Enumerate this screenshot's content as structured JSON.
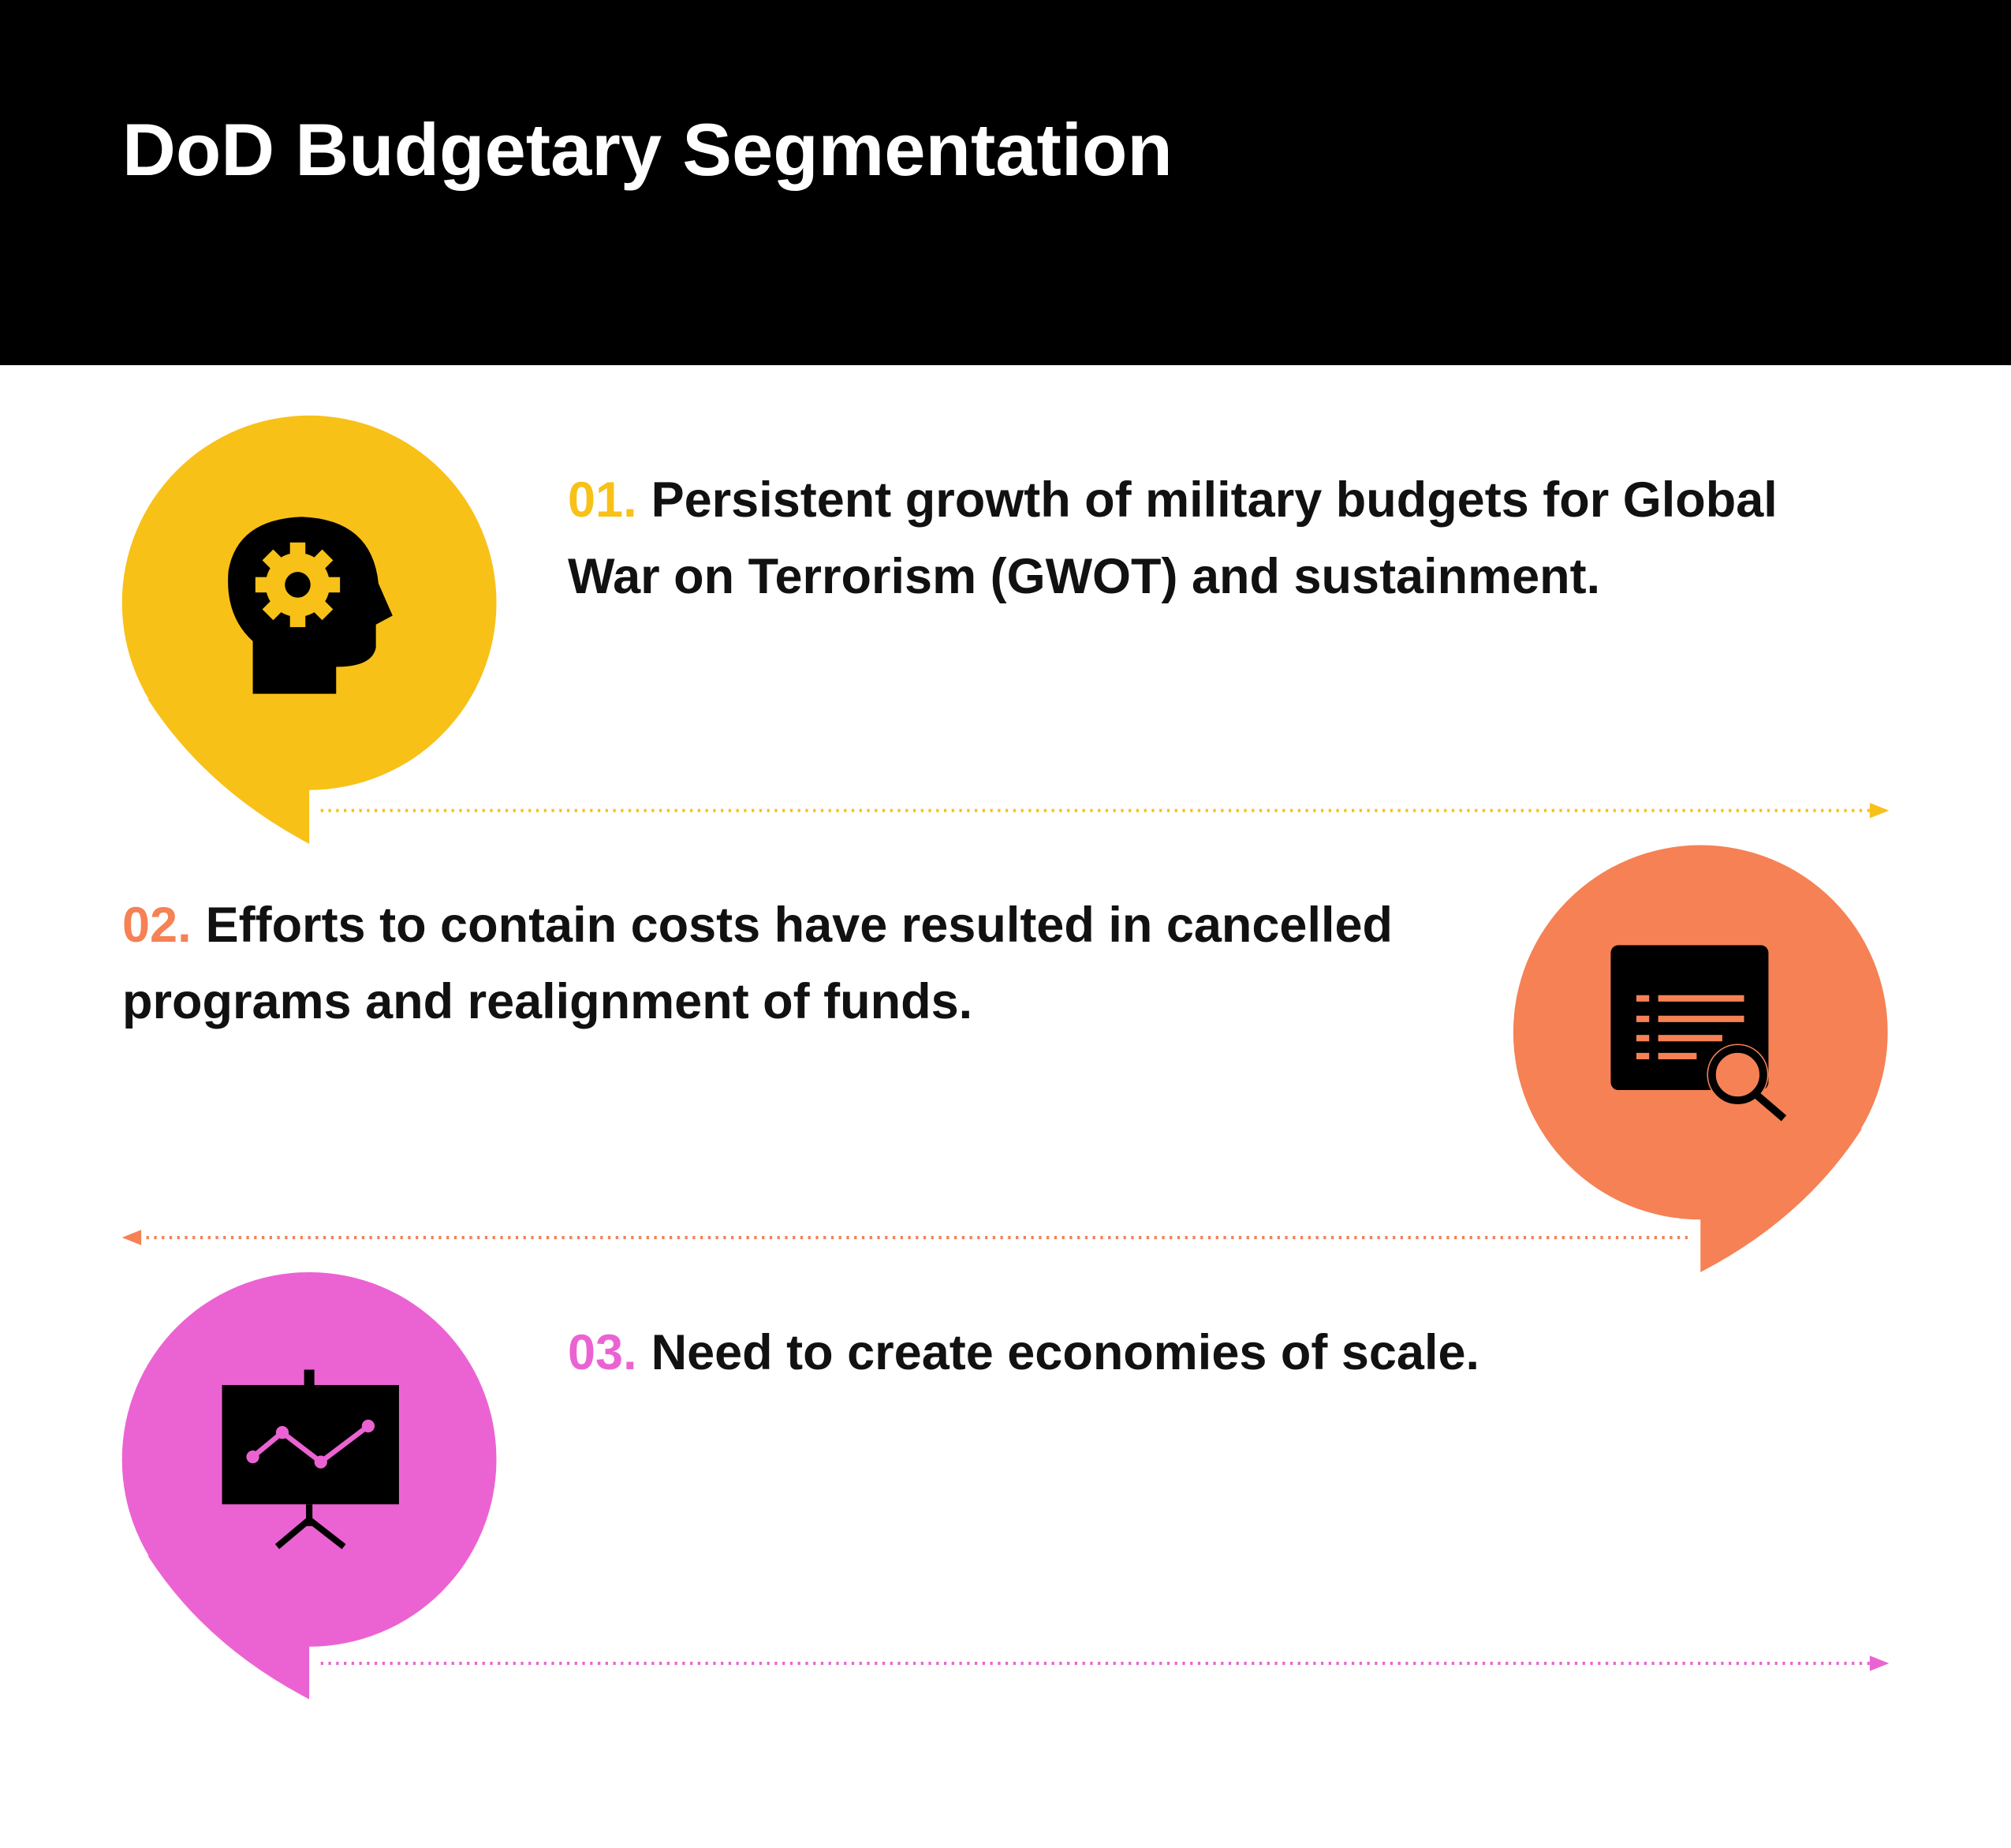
{
  "header": {
    "title": "DoD Budgetary Segmentation"
  },
  "items": [
    {
      "number": "01.",
      "text": "Persistent growth of military budgets for Global War on Terrorism (GWOT) and sustainment."
    },
    {
      "number": "02.",
      "text": "Efforts to contain costs have resulted in cancelled programs and realignment of funds."
    },
    {
      "number": "03.",
      "text": "Need to create economies of scale."
    }
  ]
}
